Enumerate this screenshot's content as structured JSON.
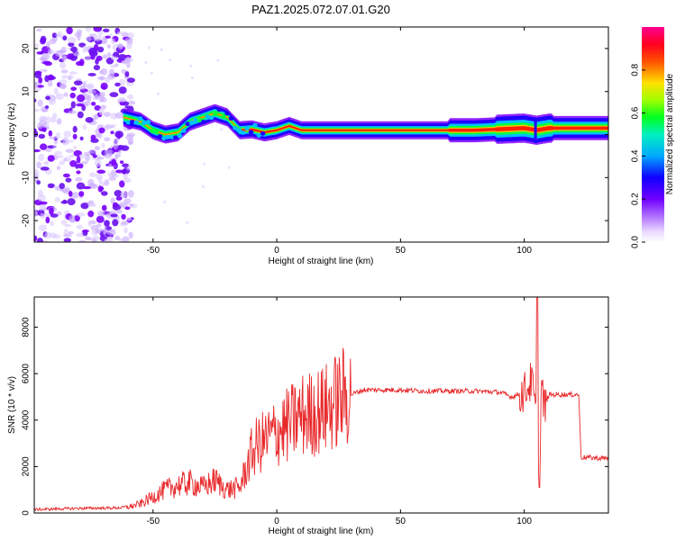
{
  "figure": {
    "title": "PAZ1.2025.072.07.01.G20"
  },
  "chart_data": [
    {
      "type": "heatmap",
      "name": "spectrogram",
      "xlabel": "Height of straight line (km)",
      "ylabel": "Frequency (Hz)",
      "xlim": [
        -98,
        134
      ],
      "ylim": [
        -25,
        25
      ],
      "x_ticks": [
        -50,
        0,
        50,
        100
      ],
      "y_ticks": [
        20,
        10,
        0,
        -10,
        -20
      ],
      "colorbar": {
        "label": "Normalized spectral amplitude",
        "range": [
          0,
          1
        ],
        "ticks": [
          "0.0",
          "0.2",
          "0.4",
          "0.6",
          "0.8"
        ],
        "colormap": [
          "#ffffff",
          "#c0a0ff",
          "#8000ff",
          "#2000ff",
          "#00c0ff",
          "#00ff40",
          "#c0ff00",
          "#ffc000",
          "#ff2000",
          "#ff0080"
        ]
      },
      "ridge": {
        "height_km": [
          -62,
          -55,
          -50,
          -45,
          -40,
          -35,
          -30,
          -25,
          -20,
          -15,
          -10,
          -5,
          0,
          5,
          10,
          20,
          40,
          60,
          80,
          100,
          105,
          110,
          120,
          134
        ],
        "frequency_hz": [
          4,
          3,
          1,
          0,
          0.5,
          3,
          4,
          5,
          4,
          1,
          1.2,
          0.5,
          1,
          2,
          1,
          1,
          1,
          1,
          1,
          1.5,
          1,
          1.5,
          1.5,
          1.5
        ]
      },
      "noise_region_km": [
        -98,
        -58
      ]
    },
    {
      "type": "line",
      "name": "snr",
      "xlabel": "Height of straight line (km)",
      "ylabel": "SNR (10 * v/v)",
      "xlim": [
        -98,
        134
      ],
      "ylim": [
        0,
        9300
      ],
      "x_ticks": [
        -50,
        0,
        50,
        100
      ],
      "y_ticks": [
        0,
        2000,
        4000,
        6000,
        8000
      ],
      "series": [
        {
          "color": "#e8282a",
          "x": [
            -98,
            -80,
            -65,
            -60,
            -55,
            -50,
            -45,
            -40,
            -35,
            -30,
            -25,
            -20,
            -15,
            -12,
            -10,
            -8,
            -5,
            0,
            5,
            10,
            15,
            20,
            25,
            30,
            35,
            40,
            50,
            60,
            70,
            80,
            90,
            95,
            100,
            103,
            105,
            106,
            107,
            108,
            110,
            115,
            120,
            122,
            123,
            134
          ],
          "y": [
            150,
            200,
            220,
            250,
            400,
            700,
            1000,
            1200,
            1300,
            1100,
            1400,
            1000,
            1100,
            2000,
            2600,
            2900,
            3100,
            3500,
            3800,
            4200,
            4300,
            4500,
            4900,
            5100,
            5300,
            5300,
            5300,
            5250,
            5250,
            5250,
            5200,
            5000,
            5200,
            5700,
            4000,
            1500,
            5600,
            4500,
            5100,
            5100,
            5100,
            5100,
            2400,
            2350
          ]
        }
      ]
    }
  ]
}
